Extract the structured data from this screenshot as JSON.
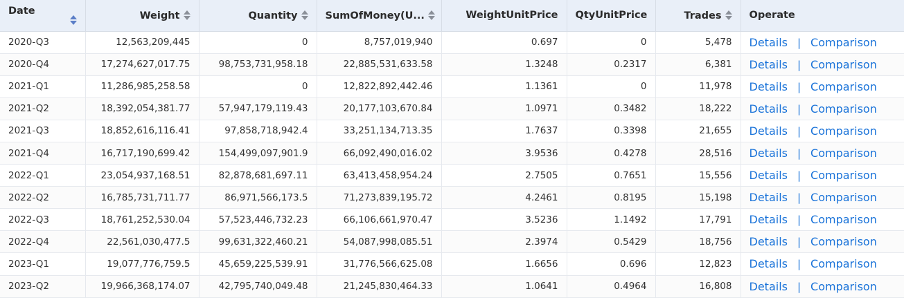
{
  "columns": {
    "date": "Date",
    "weight": "Weight",
    "quantity": "Quantity",
    "sum": "SumOfMoney(U...",
    "wup": "WeightUnitPrice",
    "qup": "QtyUnitPrice",
    "trades": "Trades",
    "operate": "Operate"
  },
  "actions": {
    "details": "Details",
    "separator": "|",
    "comparison": "Comparison"
  },
  "rows": [
    {
      "date": "2020-Q3",
      "weight": "12,563,209,445",
      "quantity": "0",
      "sum": "8,757,019,940",
      "wup": "0.697",
      "qup": "0",
      "trades": "5,478"
    },
    {
      "date": "2020-Q4",
      "weight": "17,274,627,017.75",
      "quantity": "98,753,731,958.18",
      "sum": "22,885,531,633.58",
      "wup": "1.3248",
      "qup": "0.2317",
      "trades": "6,381"
    },
    {
      "date": "2021-Q1",
      "weight": "11,286,985,258.58",
      "quantity": "0",
      "sum": "12,822,892,442.46",
      "wup": "1.1361",
      "qup": "0",
      "trades": "11,978"
    },
    {
      "date": "2021-Q2",
      "weight": "18,392,054,381.77",
      "quantity": "57,947,179,119.43",
      "sum": "20,177,103,670.84",
      "wup": "1.0971",
      "qup": "0.3482",
      "trades": "18,222"
    },
    {
      "date": "2021-Q3",
      "weight": "18,852,616,116.41",
      "quantity": "97,858,718,942.4",
      "sum": "33,251,134,713.35",
      "wup": "1.7637",
      "qup": "0.3398",
      "trades": "21,655"
    },
    {
      "date": "2021-Q4",
      "weight": "16,717,190,699.42",
      "quantity": "154,499,097,901.9",
      "sum": "66,092,490,016.02",
      "wup": "3.9536",
      "qup": "0.4278",
      "trades": "28,516"
    },
    {
      "date": "2022-Q1",
      "weight": "23,054,937,168.51",
      "quantity": "82,878,681,697.11",
      "sum": "63,413,458,954.24",
      "wup": "2.7505",
      "qup": "0.7651",
      "trades": "15,556"
    },
    {
      "date": "2022-Q2",
      "weight": "16,785,731,711.77",
      "quantity": "86,971,566,173.5",
      "sum": "71,273,839,195.72",
      "wup": "4.2461",
      "qup": "0.8195",
      "trades": "15,198"
    },
    {
      "date": "2022-Q3",
      "weight": "18,761,252,530.04",
      "quantity": "57,523,446,732.23",
      "sum": "66,106,661,970.47",
      "wup": "3.5236",
      "qup": "1.1492",
      "trades": "17,791"
    },
    {
      "date": "2022-Q4",
      "weight": "22,561,030,477.5",
      "quantity": "99,631,322,460.21",
      "sum": "54,087,998,085.51",
      "wup": "2.3974",
      "qup": "0.5429",
      "trades": "18,756"
    },
    {
      "date": "2023-Q1",
      "weight": "19,077,776,759.5",
      "quantity": "45,659,225,539.91",
      "sum": "31,776,566,625.08",
      "wup": "1.6656",
      "qup": "0.696",
      "trades": "12,823"
    },
    {
      "date": "2023-Q2",
      "weight": "19,966,368,174.07",
      "quantity": "42,795,740,049.48",
      "sum": "21,245,830,464.33",
      "wup": "1.0641",
      "qup": "0.4964",
      "trades": "16,808"
    }
  ],
  "colors": {
    "header_bg": "#e9eff8",
    "link": "#1a73d9",
    "sort_active": "#5b7ec7",
    "sort_inactive": "#8a8f98"
  },
  "icons": {
    "sort": "sort-arrows-icon"
  }
}
